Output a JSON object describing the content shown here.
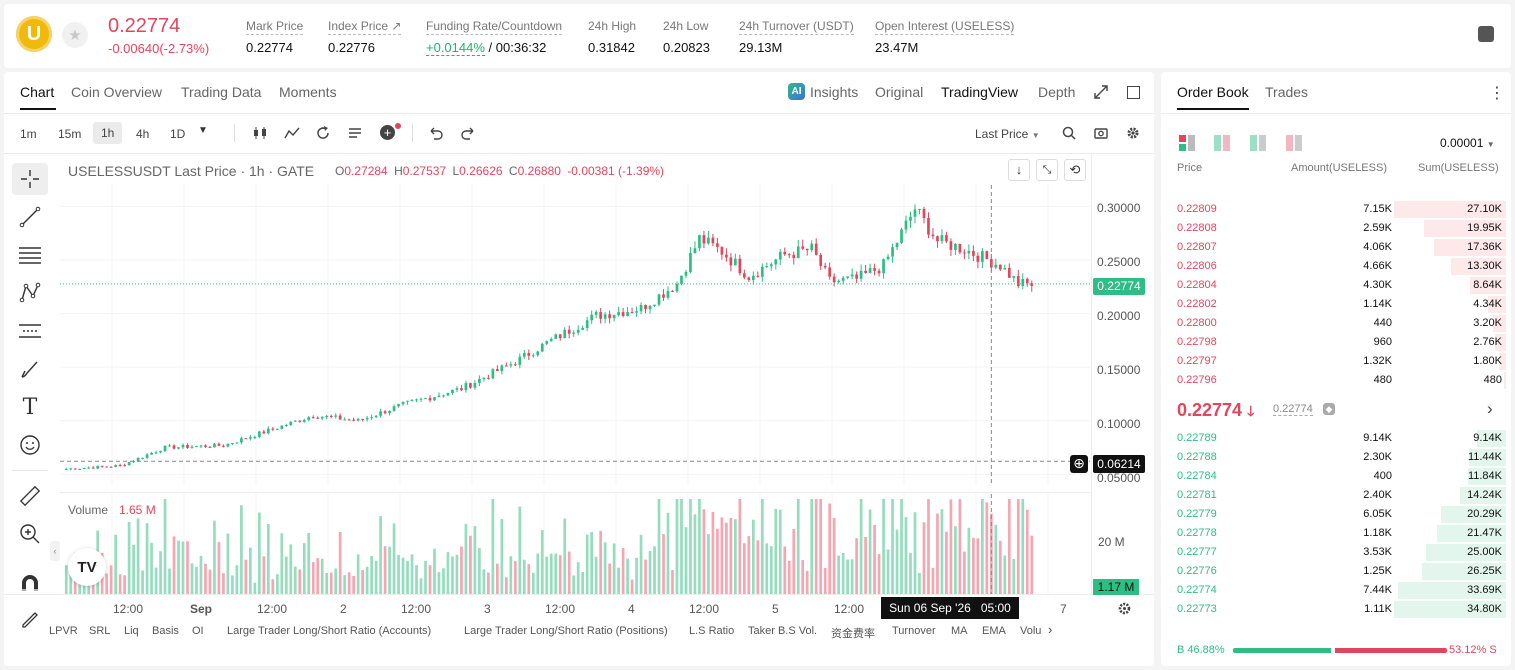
{
  "ticker": {
    "logo_letter": "U",
    "last_price": "0.22774",
    "change": "-0.00640(-2.73%)",
    "stats": [
      {
        "label": "Mark Price",
        "value": "0.22774"
      },
      {
        "label": "Index Price ↗",
        "value": "0.22776"
      },
      {
        "label": "Funding Rate/Countdown",
        "value_rate": "+0.0144%",
        "value_countdown": "/ 00:36:32"
      },
      {
        "label": "24h High",
        "value": "0.31842"
      },
      {
        "label": "24h Low",
        "value": "0.20823"
      },
      {
        "label": "24h Turnover (USDT)",
        "value": "29.13M"
      },
      {
        "label": "Open Interest (USELESS)",
        "value": "23.47M"
      }
    ]
  },
  "chart_tabs": [
    "Chart",
    "Coin Overview",
    "Trading Data",
    "Moments"
  ],
  "view_tabs": {
    "insights": "Insights",
    "original": "Original",
    "tradingview": "TradingView",
    "depth": "Depth"
  },
  "timeframes": [
    "1m",
    "15m",
    "1h",
    "4h",
    "1D"
  ],
  "active_timeframe": "1h",
  "price_type": "Last Price",
  "legend": {
    "symbol": "USELESSUSDT Last Price · 1h · GATE",
    "o_label": "O",
    "o": "0.27284",
    "h_label": "H",
    "h": "0.27537",
    "l_label": "L",
    "l": "0.26626",
    "c_label": "C",
    "c": "0.26880",
    "chg": "-0.00381 (-1.39%)"
  },
  "volume_legend": {
    "label": "Volume",
    "value": "1.65 M"
  },
  "y_axis_ticks": [
    "0.30000",
    "0.25000",
    "0.20000",
    "0.15000",
    "0.10000",
    "0.05000"
  ],
  "current_price_tag": "0.22774",
  "crosshair_price_tag": "0.06214",
  "volume_axis_tick": "20 M",
  "volume_tag": "1.17 M",
  "x_axis_ticks": [
    "12:00",
    "Sep",
    "12:00",
    "2",
    "12:00",
    "3",
    "12:00",
    "4",
    "12:00",
    "5",
    "12:00",
    "7"
  ],
  "crosshair_time": "Sun 06 Sep '26   05:00",
  "bottom_indicators": [
    "LPVR",
    "SRL",
    "Liq",
    "Basis",
    "OI",
    "Large Trader Long/Short Ratio (Accounts)",
    "Large Trader Long/Short Ratio (Positions)",
    "L.S Ratio",
    "Taker B.S Vol.",
    "资金费率",
    "Turnover",
    "MA",
    "EMA",
    "Volu"
  ],
  "chart_data": {
    "type": "candlestick",
    "title": "USELESSUSDT Last Price · 1h · GATE",
    "x_range": [
      "Aug 31",
      "Sep 6"
    ],
    "ylim": [
      0.04,
      0.32
    ],
    "trend_anchors": [
      {
        "x": 0,
        "close": 0.055
      },
      {
        "x": 12,
        "close": 0.058
      },
      {
        "x": 22,
        "close": 0.075
      },
      {
        "x": 35,
        "close": 0.077
      },
      {
        "x": 48,
        "close": 0.095
      },
      {
        "x": 55,
        "close": 0.105
      },
      {
        "x": 65,
        "close": 0.1
      },
      {
        "x": 75,
        "close": 0.115
      },
      {
        "x": 88,
        "close": 0.13
      },
      {
        "x": 100,
        "close": 0.155
      },
      {
        "x": 108,
        "close": 0.175
      },
      {
        "x": 118,
        "close": 0.198
      },
      {
        "x": 128,
        "close": 0.205
      },
      {
        "x": 136,
        "close": 0.228
      },
      {
        "x": 141,
        "close": 0.27
      },
      {
        "x": 146,
        "close": 0.258
      },
      {
        "x": 152,
        "close": 0.235
      },
      {
        "x": 160,
        "close": 0.255
      },
      {
        "x": 166,
        "close": 0.26
      },
      {
        "x": 170,
        "close": 0.23
      },
      {
        "x": 176,
        "close": 0.232
      },
      {
        "x": 182,
        "close": 0.245
      },
      {
        "x": 186,
        "close": 0.275
      },
      {
        "x": 189,
        "close": 0.298
      },
      {
        "x": 194,
        "close": 0.268
      },
      {
        "x": 200,
        "close": 0.26
      },
      {
        "x": 208,
        "close": 0.245
      },
      {
        "x": 212,
        "close": 0.228
      },
      {
        "x": 215,
        "close": 0.227
      }
    ],
    "volume_ylim": [
      0,
      30000000
    ]
  },
  "order_book": {
    "tabs": [
      "Order Book",
      "Trades"
    ],
    "precision": "0.00001",
    "headers": [
      "Price",
      "Amount(USELESS)",
      "Sum(USELESS)"
    ],
    "asks": [
      [
        "0.22809",
        "7.15K",
        "27.10K"
      ],
      [
        "0.22808",
        "2.59K",
        "19.95K"
      ],
      [
        "0.22807",
        "4.06K",
        "17.36K"
      ],
      [
        "0.22806",
        "4.66K",
        "13.30K"
      ],
      [
        "0.22804",
        "4.30K",
        "8.64K"
      ],
      [
        "0.22802",
        "1.14K",
        "4.34K"
      ],
      [
        "0.22800",
        "440",
        "3.20K"
      ],
      [
        "0.22798",
        "960",
        "2.76K"
      ],
      [
        "0.22797",
        "1.32K",
        "1.80K"
      ],
      [
        "0.22796",
        "480",
        "480"
      ]
    ],
    "asks_sum_values": [
      27.1,
      19.95,
      17.36,
      13.3,
      8.64,
      4.34,
      3.2,
      2.76,
      1.8,
      0.48
    ],
    "mid_price": "0.22774",
    "mid_mark": "0.22774",
    "bids": [
      [
        "0.22789",
        "9.14K",
        "9.14K"
      ],
      [
        "0.22788",
        "2.30K",
        "11.44K"
      ],
      [
        "0.22784",
        "400",
        "11.84K"
      ],
      [
        "0.22781",
        "2.40K",
        "14.24K"
      ],
      [
        "0.22779",
        "6.05K",
        "20.29K"
      ],
      [
        "0.22778",
        "1.18K",
        "21.47K"
      ],
      [
        "0.22777",
        "3.53K",
        "25.00K"
      ],
      [
        "0.22776",
        "1.25K",
        "26.25K"
      ],
      [
        "0.22774",
        "7.44K",
        "33.69K"
      ],
      [
        "0.22773",
        "1.11K",
        "34.80K"
      ]
    ],
    "bids_sum_values": [
      9.14,
      11.44,
      11.84,
      14.24,
      20.29,
      21.47,
      25.0,
      26.25,
      33.69,
      34.8
    ],
    "buy_ratio": "B 46.88%",
    "sell_ratio": "53.12% S",
    "buy_fraction": 0.4688
  },
  "colors": {
    "up": "#2ebd85",
    "down": "#e0475e",
    "accent": "#1eb46f"
  }
}
